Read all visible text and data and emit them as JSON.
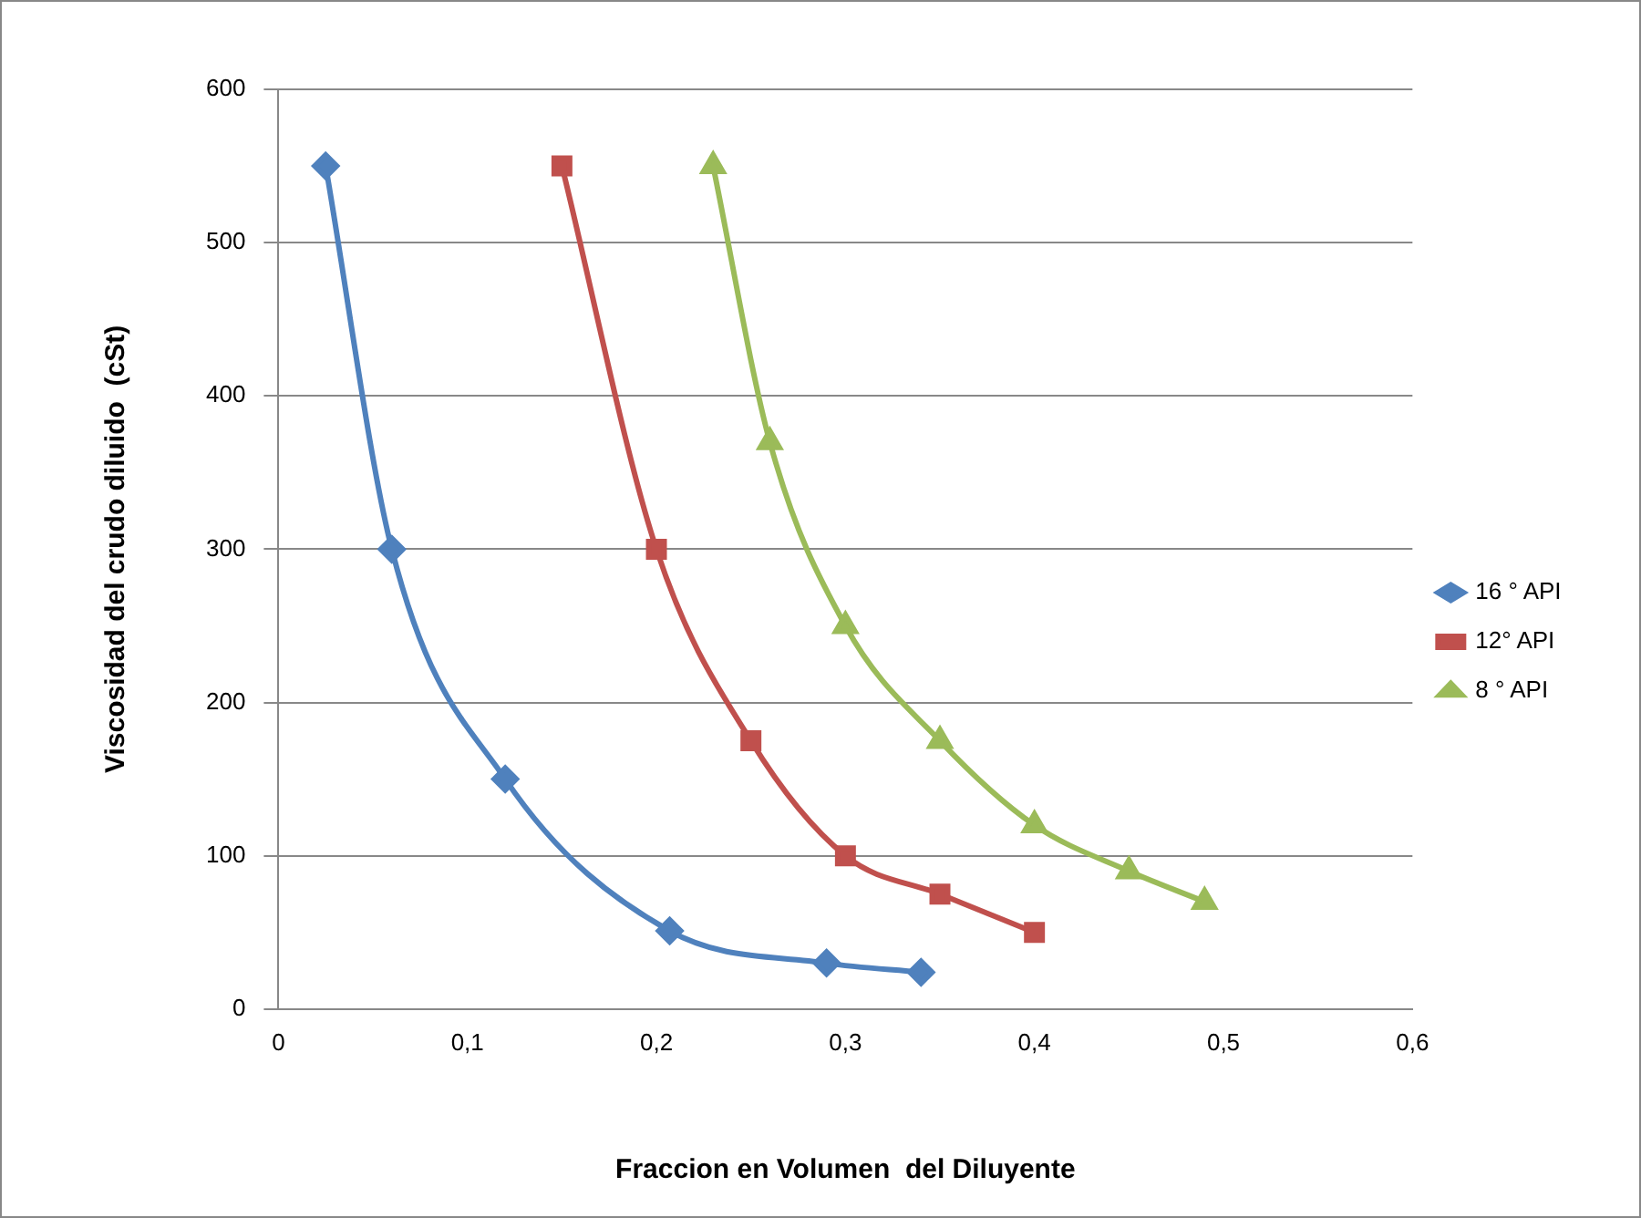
{
  "chart_data": {
    "type": "line",
    "xlabel": "Fraccion en Volumen  del Diluyente",
    "ylabel": "Viscosidad del crudo diluido  (cSt)",
    "series": [
      {
        "name": "16 ° API",
        "color": "#4f81bd",
        "marker": "diamond",
        "x": [
          0.025,
          0.06,
          0.12,
          0.207,
          0.29,
          0.34
        ],
        "values": [
          550,
          300,
          150,
          51,
          30,
          24
        ]
      },
      {
        "name": "12° API",
        "color": "#c0504d",
        "marker": "square",
        "x": [
          0.15,
          0.2,
          0.25,
          0.3,
          0.35,
          0.4
        ],
        "values": [
          550,
          300,
          175,
          100,
          75,
          50
        ]
      },
      {
        "name": "8 ° API",
        "color": "#9bbb59",
        "marker": "triangle",
        "x": [
          0.23,
          0.26,
          0.3,
          0.35,
          0.4,
          0.45,
          0.49
        ],
        "values": [
          550,
          370,
          250,
          175,
          120,
          90,
          70
        ]
      }
    ],
    "xlim": [
      0,
      0.6
    ],
    "xticks": [
      0,
      {
        "value": 0.1,
        "label": "0,1"
      },
      {
        "value": 0.2,
        "label": "0,2"
      },
      {
        "value": 0.3,
        "label": "0,3"
      },
      {
        "value": 0.4,
        "label": "0,4"
      },
      {
        "value": 0.5,
        "label": "0,5"
      },
      {
        "value": 0.6,
        "label": "0,6"
      }
    ],
    "ylim": [
      0,
      600
    ],
    "yticks": [
      0,
      100,
      200,
      300,
      400,
      500,
      600
    ],
    "grid": "y",
    "legend": "right"
  }
}
